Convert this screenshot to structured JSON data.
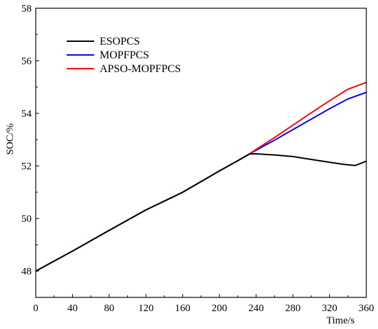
{
  "chart_data": {
    "type": "line",
    "title": "",
    "xlabel": "Time/s",
    "ylabel": "SOC/%",
    "xlim": [
      0,
      360
    ],
    "ylim": [
      47,
      58
    ],
    "xticks": [
      0,
      40,
      80,
      120,
      160,
      200,
      240,
      280,
      320,
      360
    ],
    "yticks": [
      48,
      50,
      52,
      54,
      56,
      58
    ],
    "grid": false,
    "legend": "upper-left",
    "series": [
      {
        "name": "ESOPCS",
        "color": "#000000",
        "x": [
          0,
          40,
          80,
          120,
          160,
          200,
          220,
          233,
          240,
          260,
          280,
          300,
          320,
          335,
          348,
          360
        ],
        "y": [
          48.0,
          48.76,
          49.55,
          50.33,
          51.0,
          51.81,
          52.2,
          52.46,
          52.46,
          52.42,
          52.36,
          52.25,
          52.14,
          52.06,
          52.02,
          52.18
        ]
      },
      {
        "name": "MOPFPCS",
        "color": "#0000ff",
        "x": [
          0,
          40,
          80,
          120,
          160,
          200,
          220,
          233,
          240,
          260,
          280,
          300,
          320,
          340,
          360
        ],
        "y": [
          48.0,
          48.76,
          49.55,
          50.33,
          51.0,
          51.81,
          52.2,
          52.46,
          52.6,
          52.98,
          53.38,
          53.78,
          54.18,
          54.55,
          54.8
        ]
      },
      {
        "name": "APSO-MOPFPCS",
        "color": "#ff0000",
        "x": [
          0,
          40,
          80,
          120,
          160,
          200,
          220,
          233,
          240,
          260,
          280,
          300,
          320,
          340,
          360
        ],
        "y": [
          48.0,
          48.76,
          49.55,
          50.33,
          51.0,
          51.81,
          52.2,
          52.46,
          52.63,
          53.08,
          53.55,
          54.02,
          54.48,
          54.92,
          55.18
        ]
      }
    ]
  }
}
